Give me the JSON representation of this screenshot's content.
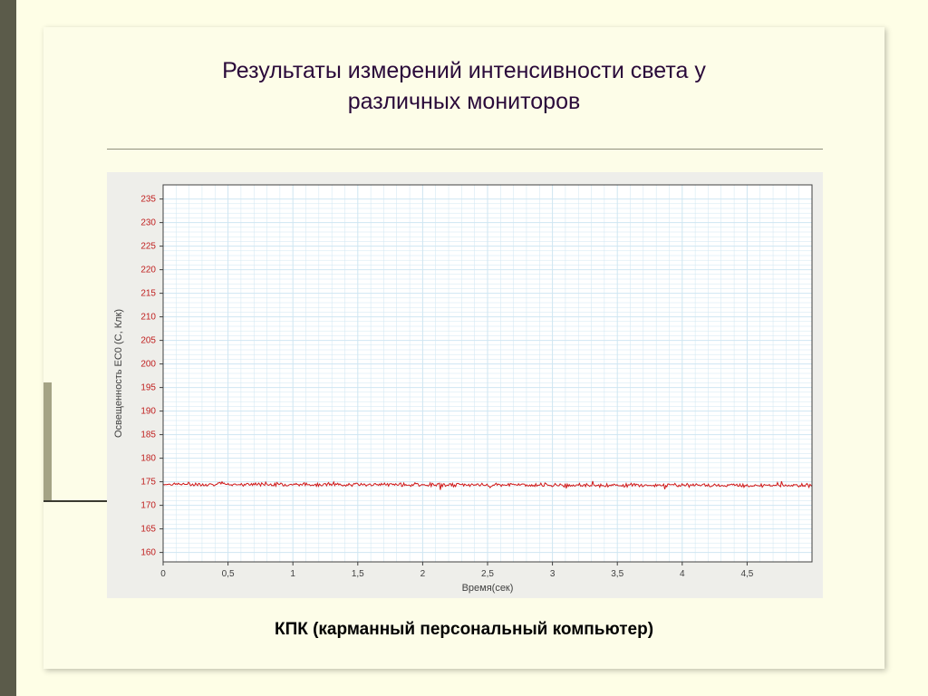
{
  "title_line1": "Результаты измерений интенсивности света у",
  "title_line2": "различных  мониторов",
  "caption": "КПК (карманный персональный компьютер)",
  "chart": {
    "type": "line",
    "plot_bg": "#ffffff",
    "frame_bg": "#eeeeea",
    "grid_color": "#cfe6f2",
    "axis_color": "#404040",
    "tick_font_color_y": "#c02020",
    "tick_font_color_x": "#404040",
    "tick_fontsize": 10,
    "axis_label_fontsize": 11,
    "line_color": "#d01818",
    "line_width": 1,
    "xlabel": "Время(сек)",
    "ylabel": "Освещенность ЕС0 (С, Клк)",
    "xlim": [
      0,
      5.0
    ],
    "xticks": [
      0,
      0.5,
      1,
      1.5,
      2,
      2.5,
      3,
      3.5,
      4,
      4.5
    ],
    "xtick_labels": [
      "0",
      "0,5",
      "1",
      "1,5",
      "2",
      "2,5",
      "3",
      "3,5",
      "4",
      "4,5"
    ],
    "ylim": [
      158,
      238
    ],
    "yticks": [
      160,
      165,
      170,
      175,
      180,
      185,
      190,
      195,
      200,
      205,
      210,
      215,
      220,
      225,
      230,
      235
    ],
    "minor_x_subdiv": 5,
    "minor_y_subdiv": 5,
    "series_baseline": 174.5,
    "series_noise_amp": 0.9
  },
  "colors": {
    "page_bg": "#fefee6",
    "panel_bg": "#fdfde8",
    "left_band": "#5b5b4a",
    "title_color": "#2a0a3a",
    "hr_color": "#8f8f7e",
    "accent_bar": "#a4a385"
  }
}
